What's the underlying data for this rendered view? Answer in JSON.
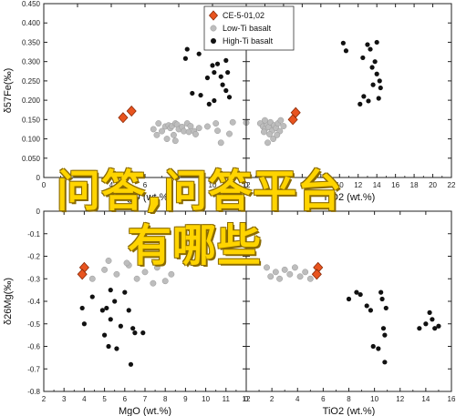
{
  "chart_data": [
    {
      "type": "scatter",
      "panel": "top-left",
      "xlabel": "MgO (wt.%)",
      "ylabel": "δ57Fe(‰)",
      "xlim": [
        0,
        12
      ],
      "ylim": [
        0,
        0.45
      ],
      "xticks": [
        "0",
        "2",
        "4",
        "6",
        "8",
        "10",
        "12"
      ],
      "yticks": [
        "0",
        "0.050",
        "0.100",
        "0.150",
        "0.200",
        "0.250",
        "0.300",
        "0.350",
        "0.400",
        "0.450"
      ],
      "series": [
        {
          "name": "CE-5-01,02",
          "marker": "diamond",
          "color": "#e8541f",
          "points": [
            [
              4.7,
              0.155
            ],
            [
              5.2,
              0.172
            ]
          ]
        },
        {
          "name": "Low-Ti basalt",
          "marker": "circle",
          "color": "#bdbdbd",
          "points": [
            [
              6.5,
              0.125
            ],
            [
              6.8,
              0.14
            ],
            [
              7.0,
              0.12
            ],
            [
              7.2,
              0.132
            ],
            [
              7.4,
              0.135
            ],
            [
              7.5,
              0.128
            ],
            [
              7.6,
              0.133
            ],
            [
              7.7,
              0.11
            ],
            [
              7.8,
              0.14
            ],
            [
              7.9,
              0.137
            ],
            [
              7.8,
              0.095
            ],
            [
              8.0,
              0.125
            ],
            [
              8.2,
              0.131
            ],
            [
              8.3,
              0.12
            ],
            [
              8.5,
              0.14
            ],
            [
              8.6,
              0.118
            ],
            [
              8.7,
              0.133
            ],
            [
              8.9,
              0.12
            ],
            [
              9.0,
              0.112
            ],
            [
              9.2,
              0.128
            ],
            [
              6.7,
              0.11
            ],
            [
              7.3,
              0.1
            ],
            [
              9.7,
              0.132
            ],
            [
              10.2,
              0.14
            ],
            [
              11.2,
              0.143
            ],
            [
              11.0,
              0.113
            ],
            [
              10.3,
              0.121
            ],
            [
              10.5,
              0.09
            ],
            [
              12.0,
              0.142
            ]
          ]
        },
        {
          "name": "High-Ti basalt",
          "marker": "dot",
          "color": "#111111",
          "points": [
            [
              8.5,
              0.332
            ],
            [
              8.4,
              0.308
            ],
            [
              9.2,
              0.32
            ],
            [
              8.8,
              0.218
            ],
            [
              9.3,
              0.213
            ],
            [
              9.8,
              0.19
            ],
            [
              10.1,
              0.199
            ],
            [
              9.7,
              0.258
            ],
            [
              10.1,
              0.272
            ],
            [
              10.5,
              0.261
            ],
            [
              10.3,
              0.294
            ],
            [
              10.9,
              0.272
            ],
            [
              10.6,
              0.24
            ],
            [
              10.8,
              0.225
            ],
            [
              11.0,
              0.208
            ],
            [
              10.0,
              0.29
            ],
            [
              10.4,
              0.347
            ],
            [
              10.8,
              0.303
            ]
          ]
        }
      ],
      "legend": {
        "placement": "top-right"
      }
    },
    {
      "type": "scatter",
      "panel": "top-right",
      "xlabel": "TiO2 (wt.%)",
      "xlim": [
        0,
        22
      ],
      "xticks": [
        "0",
        "2",
        "4",
        "6",
        "8",
        "10",
        "12",
        "14",
        "16",
        "18",
        "20",
        "22"
      ],
      "series": [
        {
          "name": "CE-5-01,02",
          "marker": "diamond",
          "color": "#e8541f",
          "points": [
            [
              5.0,
              0.15
            ],
            [
              5.3,
              0.168
            ]
          ]
        },
        {
          "name": "Low-Ti basalt",
          "marker": "circle",
          "color": "#bdbdbd",
          "points": [
            [
              1.5,
              0.14
            ],
            [
              1.8,
              0.132
            ],
            [
              2.0,
              0.125
            ],
            [
              2.2,
              0.138
            ],
            [
              2.4,
              0.13
            ],
            [
              2.6,
              0.143
            ],
            [
              2.8,
              0.122
            ],
            [
              3.0,
              0.135
            ],
            [
              3.2,
              0.128
            ],
            [
              3.4,
              0.14
            ],
            [
              3.6,
              0.12
            ],
            [
              2.5,
              0.112
            ],
            [
              2.9,
              0.1
            ],
            [
              3.3,
              0.11
            ],
            [
              1.9,
              0.118
            ],
            [
              2.3,
              0.09
            ],
            [
              4.0,
              0.133
            ],
            [
              2.0,
              0.148
            ],
            [
              3.7,
              0.148
            ]
          ]
        },
        {
          "name": "High-Ti basalt",
          "marker": "dot",
          "color": "#111111",
          "points": [
            [
              10.4,
              0.348
            ],
            [
              10.7,
              0.328
            ],
            [
              12.5,
              0.31
            ],
            [
              13.0,
              0.344
            ],
            [
              13.3,
              0.332
            ],
            [
              13.8,
              0.3
            ],
            [
              13.5,
              0.285
            ],
            [
              14.0,
              0.268
            ],
            [
              14.3,
              0.25
            ],
            [
              14.4,
              0.232
            ],
            [
              14.2,
              0.205
            ],
            [
              12.6,
              0.21
            ],
            [
              13.1,
              0.198
            ],
            [
              12.2,
              0.19
            ],
            [
              14.0,
              0.35
            ],
            [
              13.6,
              0.24
            ]
          ]
        }
      ]
    },
    {
      "type": "scatter",
      "panel": "bottom-left",
      "xlabel": "MgO (wt.%)",
      "ylabel": "δ26Mg(‰)",
      "xlim": [
        2,
        12
      ],
      "ylim": [
        -0.8,
        0
      ],
      "xticks": [
        "2",
        "3",
        "4",
        "5",
        "6",
        "7",
        "8",
        "9",
        "10",
        "11",
        "12"
      ],
      "yticks": [
        "0",
        "-0.1",
        "-0.2",
        "-0.3",
        "-0.4",
        "-0.5",
        "-0.6",
        "-0.7",
        "-0.8"
      ],
      "series": [
        {
          "name": "CE-5-01,02",
          "marker": "diamond",
          "color": "#e8541f",
          "points": [
            [
              4.0,
              -0.25
            ],
            [
              3.9,
              -0.28
            ]
          ]
        },
        {
          "name": "Low-Ti basalt",
          "marker": "circle",
          "color": "#bdbdbd",
          "points": [
            [
              4.4,
              -0.3
            ],
            [
              5.0,
              -0.26
            ],
            [
              5.6,
              -0.28
            ],
            [
              6.2,
              -0.24
            ],
            [
              6.6,
              -0.3
            ],
            [
              7.0,
              -0.27
            ],
            [
              7.4,
              -0.32
            ],
            [
              7.6,
              -0.25
            ],
            [
              8.0,
              -0.31
            ],
            [
              8.3,
              -0.28
            ],
            [
              6.1,
              -0.23
            ],
            [
              5.2,
              -0.22
            ]
          ]
        },
        {
          "name": "High-Ti basalt",
          "marker": "dot",
          "color": "#111111",
          "points": [
            [
              3.9,
              -0.43
            ],
            [
              4.0,
              -0.5
            ],
            [
              4.4,
              -0.38
            ],
            [
              4.9,
              -0.44
            ],
            [
              5.0,
              -0.55
            ],
            [
              5.1,
              -0.43
            ],
            [
              5.3,
              -0.35
            ],
            [
              5.5,
              -0.4
            ],
            [
              5.8,
              -0.51
            ],
            [
              6.0,
              -0.36
            ],
            [
              6.2,
              -0.44
            ],
            [
              6.4,
              -0.52
            ],
            [
              6.5,
              -0.54
            ],
            [
              6.9,
              -0.54
            ],
            [
              5.2,
              -0.6
            ],
            [
              5.6,
              -0.61
            ],
            [
              6.3,
              -0.68
            ],
            [
              5.3,
              -0.48
            ]
          ]
        }
      ]
    },
    {
      "type": "scatter",
      "panel": "bottom-right",
      "xlabel": "TiO2 (wt.%)",
      "xlim": [
        0,
        16
      ],
      "xticks": [
        "0",
        "2",
        "4",
        "6",
        "8",
        "10",
        "12",
        "14",
        "16"
      ],
      "series": [
        {
          "name": "CE-5-01,02",
          "marker": "diamond",
          "color": "#e8541f",
          "points": [
            [
              5.6,
              -0.25
            ],
            [
              5.5,
              -0.28
            ]
          ]
        },
        {
          "name": "Low-Ti basalt",
          "marker": "circle",
          "color": "#bdbdbd",
          "points": [
            [
              1.6,
              -0.25
            ],
            [
              1.9,
              -0.29
            ],
            [
              2.3,
              -0.27
            ],
            [
              2.6,
              -0.3
            ],
            [
              3.0,
              -0.26
            ],
            [
              3.4,
              -0.28
            ],
            [
              3.8,
              -0.25
            ],
            [
              4.2,
              -0.29
            ],
            [
              4.6,
              -0.27
            ],
            [
              5.0,
              -0.3
            ]
          ]
        },
        {
          "name": "High-Ti basalt",
          "marker": "dot",
          "color": "#111111",
          "points": [
            [
              8.0,
              -0.39
            ],
            [
              8.6,
              -0.36
            ],
            [
              8.9,
              -0.37
            ],
            [
              9.4,
              -0.42
            ],
            [
              9.7,
              -0.44
            ],
            [
              10.5,
              -0.36
            ],
            [
              10.6,
              -0.39
            ],
            [
              10.9,
              -0.43
            ],
            [
              10.7,
              -0.52
            ],
            [
              10.8,
              -0.55
            ],
            [
              9.9,
              -0.6
            ],
            [
              10.3,
              -0.61
            ],
            [
              10.8,
              -0.67
            ],
            [
              13.5,
              -0.52
            ],
            [
              14.0,
              -0.5
            ],
            [
              14.3,
              -0.45
            ],
            [
              14.5,
              -0.48
            ],
            [
              14.7,
              -0.52
            ],
            [
              15.0,
              -0.51
            ]
          ]
        }
      ]
    }
  ],
  "watermark": {
    "line1": "问答,问答平台",
    "line2": "有哪些"
  }
}
